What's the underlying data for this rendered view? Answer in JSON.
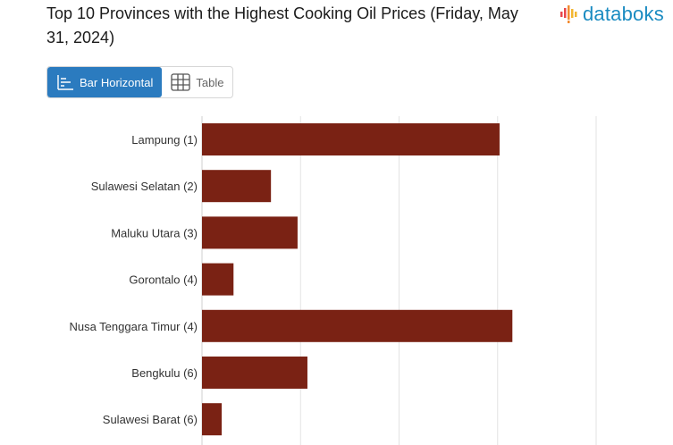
{
  "header": {
    "title": "Top 10 Provinces with the Highest Cooking Oil Prices (Friday, May 31, 2024)",
    "brand": "databoks",
    "brand_color": "#1a8bc1"
  },
  "view_toggle": {
    "options": [
      {
        "label": "Bar Horizontal",
        "icon": "bar-horizontal-icon",
        "active": true
      },
      {
        "label": "Table",
        "icon": "table-icon",
        "active": false
      }
    ],
    "active_color": "#2b7bbf"
  },
  "chart_data": {
    "type": "bar",
    "orientation": "horizontal",
    "categories": [
      "Lampung (1)",
      "Sulawesi Selatan (2)",
      "Maluku Utara (3)",
      "Gorontalo (4)",
      "Nusa Tenggara Timur (4)",
      "Bengkulu (6)",
      "Sulawesi Barat (6)"
    ],
    "values": [
      3020,
      700,
      970,
      320,
      3150,
      1070,
      200
    ],
    "xlim": [
      0,
      4000
    ],
    "grid": true,
    "bar_color": "#7a2214"
  }
}
